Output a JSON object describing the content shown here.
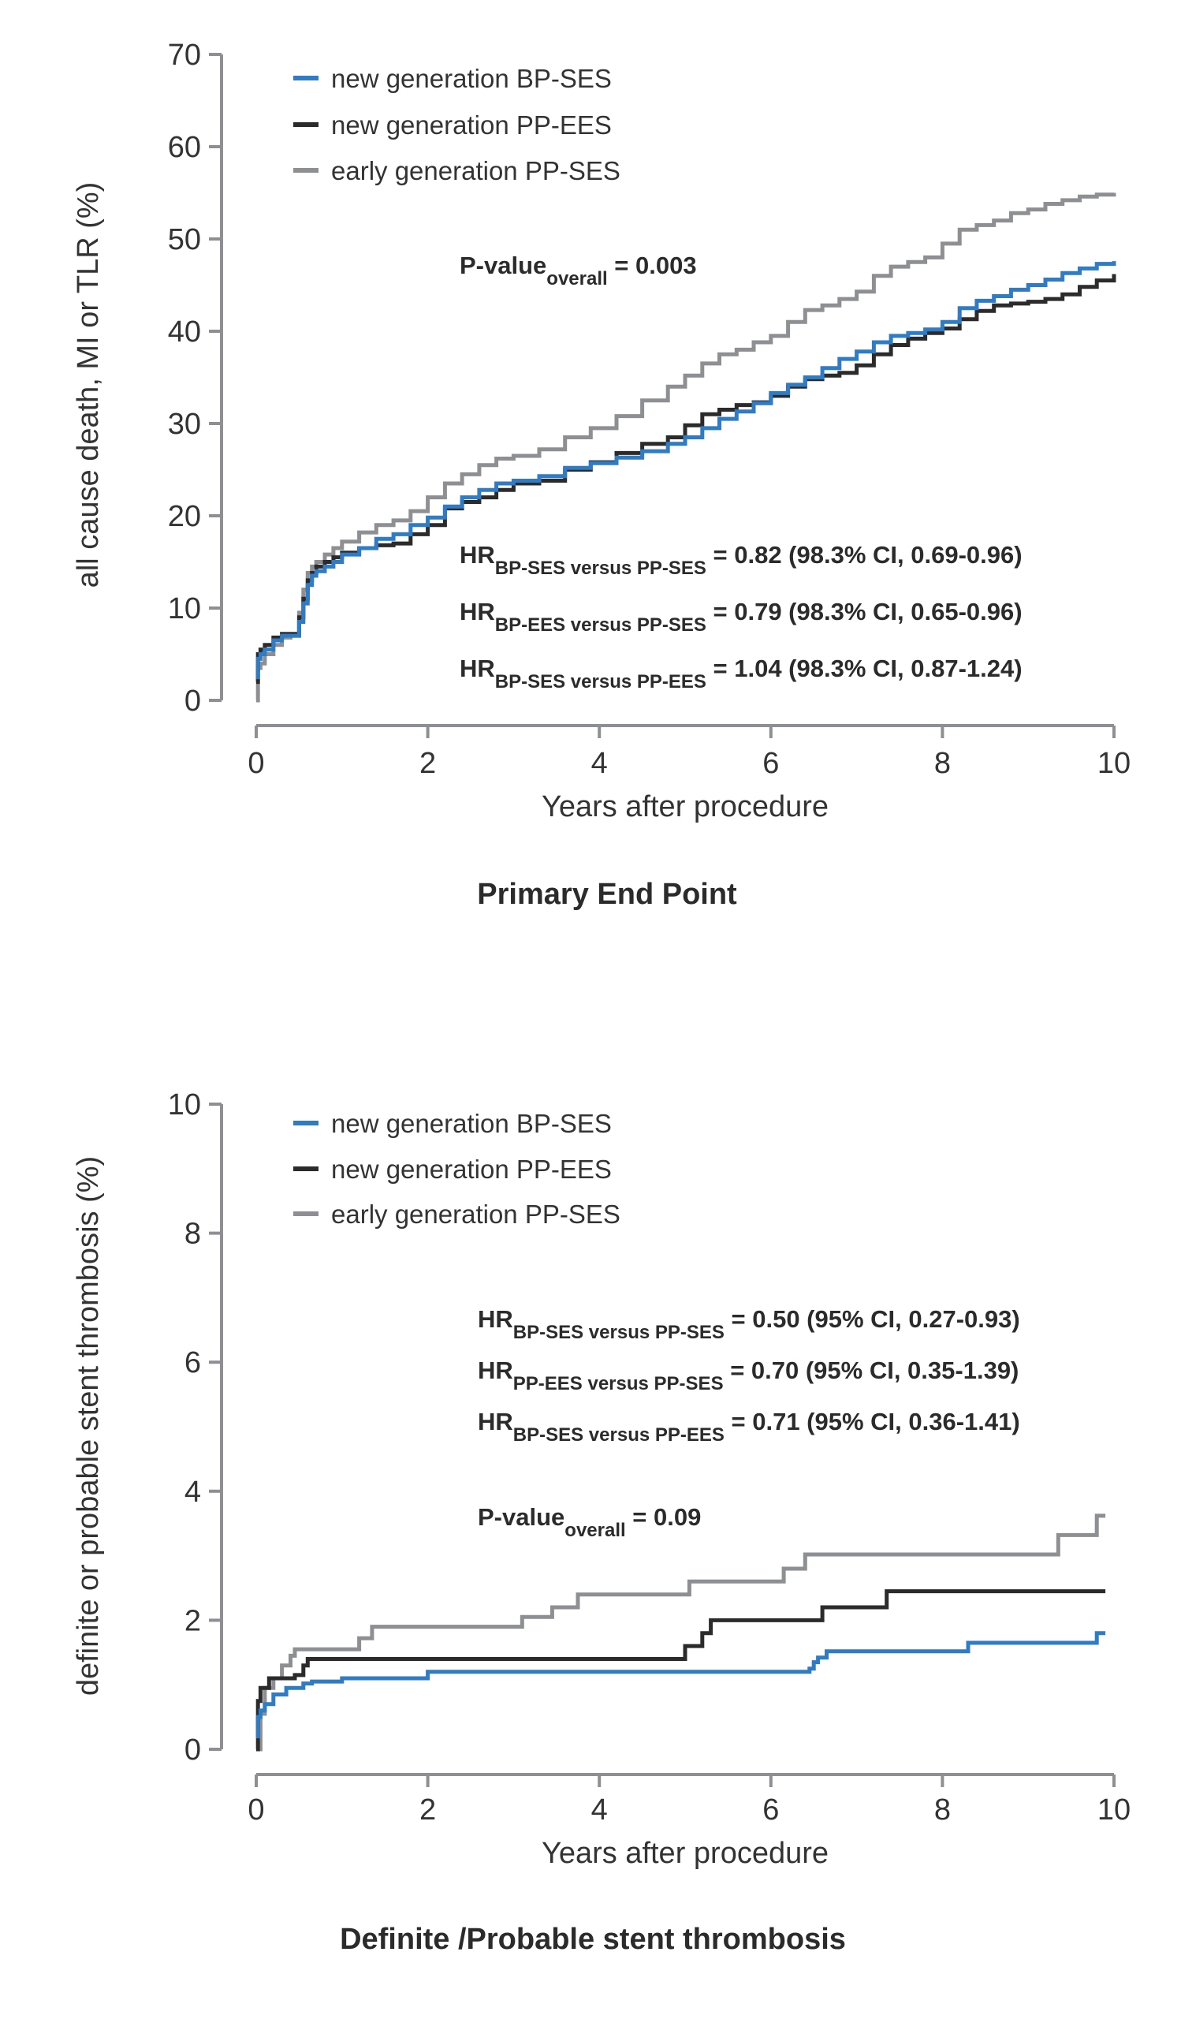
{
  "colors": {
    "bp_ses": "#2f7bc4",
    "pp_ees": "#2b2b2b",
    "pp_ses": "#8e8f93",
    "axis": "#8e8f93"
  },
  "chart_data": [
    {
      "type": "line",
      "step": true,
      "title": "Primary End Point",
      "xlabel": "Years after procedure",
      "ylabel": "all cause death, MI or TLR (%)",
      "xlim": [
        0,
        10
      ],
      "ylim": [
        0,
        70
      ],
      "xticks": [
        "0",
        "2",
        "4",
        "6",
        "8",
        "10"
      ],
      "yticks": [
        "0",
        "10",
        "20",
        "30",
        "40",
        "50",
        "60",
        "70"
      ],
      "grid": false,
      "legend_position": "top-left",
      "legend": [
        {
          "label": "new generation BP-SES",
          "color_key": "bp_ses"
        },
        {
          "label": "new generation PP-EES",
          "color_key": "pp_ees"
        },
        {
          "label": "early generation PP-SES",
          "color_key": "pp_ses"
        }
      ],
      "annotations": [
        {
          "main": "P-value",
          "sub": "overall",
          "rest": " = 0.003"
        },
        {
          "main": "HR",
          "sub": "BP-SES versus PP-SES",
          "rest": " = 0.82 (98.3% CI, 0.69-0.96)"
        },
        {
          "main": "HR",
          "sub": "BP-EES versus PP-SES",
          "rest": " = 0.79 (98.3% CI, 0.65-0.96)"
        },
        {
          "main": "HR",
          "sub": "BP-SES versus PP-EES",
          "rest": " = 1.04 (98.3% CI, 0.87-1.24)"
        }
      ],
      "series": [
        {
          "name": "new generation BP-SES",
          "color_key": "bp_ses",
          "x": [
            0,
            0.02,
            0.05,
            0.1,
            0.2,
            0.3,
            0.4,
            0.5,
            0.55,
            0.6,
            0.65,
            0.7,
            0.8,
            0.9,
            1.0,
            1.2,
            1.4,
            1.6,
            1.8,
            2.0,
            2.2,
            2.4,
            2.6,
            2.8,
            3.0,
            3.3,
            3.6,
            3.9,
            4.2,
            4.5,
            4.8,
            5.0,
            5.2,
            5.4,
            5.6,
            5.8,
            6.0,
            6.2,
            6.4,
            6.6,
            6.8,
            7.0,
            7.2,
            7.4,
            7.6,
            7.8,
            8.0,
            8.2,
            8.4,
            8.6,
            8.8,
            9.0,
            9.2,
            9.4,
            9.6,
            9.8,
            10.0
          ],
          "y": [
            2.5,
            4.5,
            5.0,
            5.5,
            6.5,
            7.0,
            7.0,
            8.5,
            10.5,
            12.5,
            13.5,
            14.0,
            14.5,
            15.0,
            15.8,
            16.5,
            17.5,
            18.0,
            19.0,
            19.8,
            21.0,
            22.0,
            22.8,
            23.5,
            23.8,
            24.3,
            25.2,
            25.7,
            26.3,
            27.0,
            27.8,
            28.5,
            29.5,
            30.5,
            31.3,
            32.2,
            33.3,
            34.2,
            35.0,
            36.0,
            37.0,
            37.8,
            38.8,
            39.5,
            39.8,
            40.2,
            41.0,
            42.5,
            43.3,
            43.8,
            44.5,
            45.0,
            45.6,
            46.3,
            46.8,
            47.3,
            47.6
          ]
        },
        {
          "name": "new generation PP-EES",
          "color_key": "pp_ees",
          "x": [
            0,
            0.02,
            0.05,
            0.1,
            0.2,
            0.3,
            0.4,
            0.5,
            0.55,
            0.6,
            0.65,
            0.7,
            0.8,
            0.9,
            1.0,
            1.2,
            1.4,
            1.6,
            1.8,
            2.0,
            2.2,
            2.4,
            2.6,
            2.8,
            3.0,
            3.3,
            3.6,
            3.9,
            4.2,
            4.5,
            4.8,
            5.0,
            5.2,
            5.4,
            5.6,
            5.8,
            6.0,
            6.2,
            6.4,
            6.6,
            6.8,
            7.0,
            7.2,
            7.4,
            7.6,
            7.8,
            8.0,
            8.2,
            8.4,
            8.6,
            8.8,
            9.0,
            9.2,
            9.4,
            9.6,
            9.8,
            10.0
          ],
          "y": [
            2.0,
            5.0,
            5.5,
            6.0,
            6.8,
            7.2,
            7.2,
            9.0,
            11.0,
            13.0,
            13.8,
            14.5,
            15.0,
            15.5,
            16.0,
            16.5,
            16.8,
            17.0,
            18.0,
            19.0,
            20.8,
            21.5,
            22.0,
            22.8,
            23.5,
            23.8,
            25.0,
            25.8,
            26.8,
            27.8,
            28.5,
            29.8,
            31.0,
            31.5,
            32.0,
            32.3,
            33.0,
            34.0,
            34.8,
            35.2,
            35.5,
            36.3,
            37.5,
            38.5,
            39.2,
            39.8,
            40.3,
            41.3,
            42.2,
            42.8,
            43.0,
            43.2,
            43.5,
            44.0,
            44.8,
            45.5,
            46.2
          ]
        },
        {
          "name": "early generation PP-SES",
          "color_key": "pp_ses",
          "x": [
            0,
            0.02,
            0.05,
            0.1,
            0.2,
            0.3,
            0.4,
            0.5,
            0.55,
            0.6,
            0.65,
            0.7,
            0.8,
            0.9,
            1.0,
            1.2,
            1.4,
            1.6,
            1.8,
            2.0,
            2.2,
            2.4,
            2.6,
            2.8,
            3.0,
            3.3,
            3.6,
            3.9,
            4.2,
            4.5,
            4.8,
            5.0,
            5.2,
            5.4,
            5.6,
            5.8,
            6.0,
            6.2,
            6.4,
            6.6,
            6.8,
            7.0,
            7.2,
            7.4,
            7.6,
            7.8,
            8.0,
            8.2,
            8.4,
            8.6,
            8.8,
            9.0,
            9.2,
            9.4,
            9.6,
            9.8,
            10.0
          ],
          "y": [
            0.0,
            3.5,
            4.0,
            5.0,
            6.0,
            6.8,
            7.0,
            9.5,
            12.0,
            13.8,
            14.5,
            15.0,
            15.8,
            16.5,
            17.2,
            18.2,
            19.0,
            19.5,
            20.5,
            22.0,
            23.5,
            24.5,
            25.5,
            26.2,
            26.5,
            27.2,
            28.5,
            29.5,
            30.8,
            32.5,
            34.0,
            35.2,
            36.5,
            37.5,
            38.0,
            38.8,
            39.5,
            41.0,
            42.3,
            42.8,
            43.5,
            44.3,
            46.0,
            47.0,
            47.5,
            48.0,
            49.5,
            51.0,
            51.5,
            52.0,
            52.8,
            53.2,
            53.8,
            54.2,
            54.6,
            54.8,
            55.0
          ]
        }
      ]
    },
    {
      "type": "line",
      "step": true,
      "title": "Definite /Probable stent thrombosis",
      "xlabel": "Years after procedure",
      "ylabel": "definite or probable stent thrombosis (%)",
      "xlim": [
        0,
        10
      ],
      "ylim": [
        0,
        10
      ],
      "xticks": [
        "0",
        "2",
        "4",
        "6",
        "8",
        "10"
      ],
      "yticks": [
        "0",
        "2",
        "4",
        "6",
        "8",
        "10"
      ],
      "grid": false,
      "legend_position": "top-left",
      "legend": [
        {
          "label": "new generation BP-SES",
          "color_key": "bp_ses"
        },
        {
          "label": "new generation PP-EES",
          "color_key": "pp_ees"
        },
        {
          "label": "early generation PP-SES",
          "color_key": "pp_ses"
        }
      ],
      "annotations": [
        {
          "main": "HR",
          "sub": "BP-SES versus PP-SES",
          "rest": " = 0.50 (95% CI, 0.27-0.93)"
        },
        {
          "main": "HR",
          "sub": "PP-EES versus PP-SES",
          "rest": " = 0.70 (95% CI, 0.35-1.39)"
        },
        {
          "main": "HR",
          "sub": "BP-SES versus PP-EES",
          "rest": " = 0.71 (95% CI, 0.36-1.41)"
        },
        {
          "main": "P-value",
          "sub": "overall",
          "rest": " = 0.09"
        }
      ],
      "series": [
        {
          "name": "new generation BP-SES",
          "color_key": "bp_ses",
          "x": [
            0,
            0.02,
            0.05,
            0.1,
            0.2,
            0.35,
            0.55,
            0.65,
            1.0,
            2.0,
            6.45,
            6.5,
            6.55,
            6.65,
            8.3,
            9.8,
            9.9
          ],
          "y": [
            0.2,
            0.5,
            0.6,
            0.7,
            0.85,
            0.95,
            1.02,
            1.05,
            1.1,
            1.2,
            1.25,
            1.35,
            1.42,
            1.52,
            1.65,
            1.8,
            1.8
          ]
        },
        {
          "name": "new generation PP-EES",
          "color_key": "pp_ees",
          "x": [
            0,
            0.02,
            0.05,
            0.15,
            0.45,
            0.55,
            0.6,
            5.0,
            5.2,
            5.3,
            6.6,
            7.35,
            9.9
          ],
          "y": [
            0.0,
            0.75,
            0.95,
            1.1,
            1.15,
            1.3,
            1.4,
            1.6,
            1.8,
            2.0,
            2.2,
            2.45,
            2.45
          ]
        },
        {
          "name": "early generation PP-SES",
          "color_key": "pp_ses",
          "x": [
            0,
            0.05,
            0.1,
            0.2,
            0.3,
            0.4,
            0.45,
            1.2,
            1.35,
            3.1,
            3.45,
            3.75,
            5.05,
            6.15,
            6.4,
            9.35,
            9.8,
            9.9
          ],
          "y": [
            0.0,
            0.55,
            0.95,
            1.1,
            1.3,
            1.45,
            1.55,
            1.72,
            1.9,
            2.05,
            2.2,
            2.4,
            2.6,
            2.8,
            3.02,
            3.32,
            3.62,
            3.62
          ]
        }
      ]
    }
  ]
}
